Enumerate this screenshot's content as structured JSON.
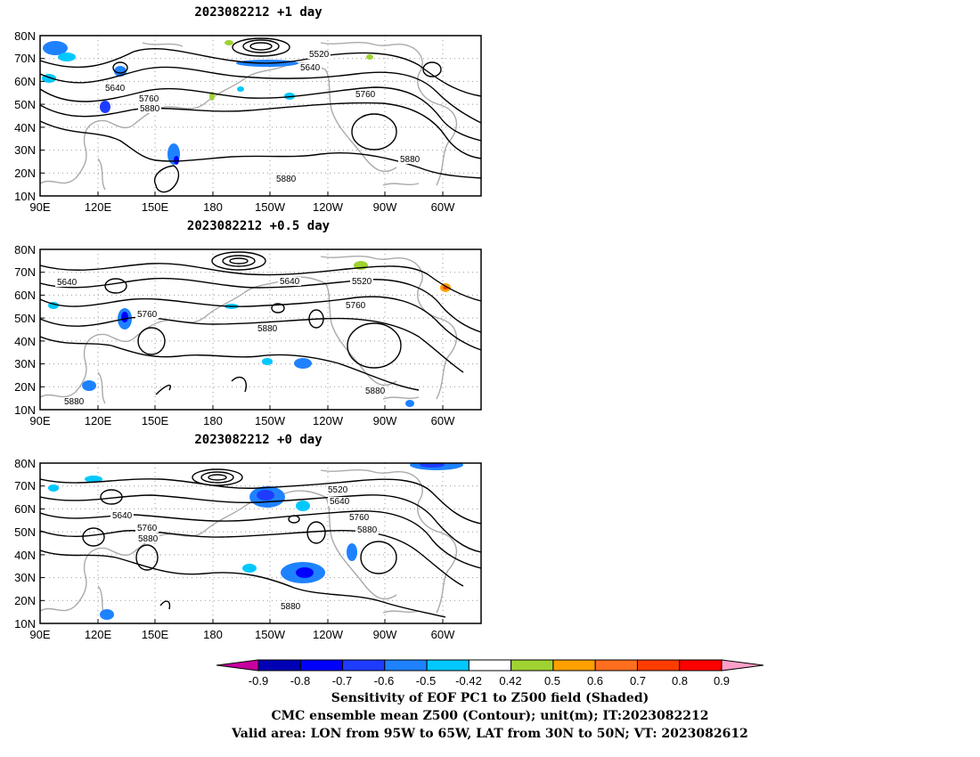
{
  "panels": [
    {
      "title": "2023082212 +1 day",
      "lat_ticks": [
        "80N",
        "70N",
        "60N",
        "50N",
        "40N",
        "30N",
        "20N",
        "10N"
      ],
      "lon_ticks": [
        "90E",
        "120E",
        "150E",
        "180",
        "150W",
        "120W",
        "90W",
        "60W"
      ],
      "contour_labels": [
        "5520",
        "5640",
        "5640",
        "5760",
        "5760",
        "5880",
        "5880",
        "5880"
      ]
    },
    {
      "title": "2023082212 +0.5 day",
      "lat_ticks": [
        "80N",
        "70N",
        "60N",
        "50N",
        "40N",
        "30N",
        "20N",
        "10N"
      ],
      "lon_ticks": [
        "90E",
        "120E",
        "150E",
        "180",
        "150W",
        "120W",
        "90W",
        "60W"
      ],
      "contour_labels": [
        "5640",
        "5640",
        "5520",
        "5760",
        "5760",
        "5880",
        "5880",
        "5880"
      ]
    },
    {
      "title": "2023082212 +0 day",
      "lat_ticks": [
        "80N",
        "70N",
        "60N",
        "50N",
        "40N",
        "30N",
        "20N",
        "10N"
      ],
      "lon_ticks": [
        "90E",
        "120E",
        "150E",
        "180",
        "150W",
        "120W",
        "90W",
        "60W"
      ],
      "contour_labels": [
        "5520",
        "5640",
        "5640",
        "5760",
        "5760",
        "5880",
        "5880",
        "5880"
      ]
    }
  ],
  "colorbar": {
    "labels": [
      "-0.9",
      "-0.8",
      "-0.7",
      "-0.6",
      "-0.5",
      "-0.42",
      "0.42",
      "0.5",
      "0.6",
      "0.7",
      "0.8",
      "0.9"
    ],
    "colors": [
      "#0000b4",
      "#0000ff",
      "#1e3cff",
      "#1e82ff",
      "#00c8ff",
      "#ffffff",
      "#a0d232",
      "#ffa000",
      "#ff6e1e",
      "#ff3c00",
      "#ff0000"
    ],
    "low_extend_color": "#c800a0",
    "high_extend_color": "#ffa0c8"
  },
  "caption": {
    "line1": "Sensitivity of EOF PC1 to Z500 field (Shaded)",
    "line2": "CMC ensemble mean Z500 (Contour); unit(m); IT:2023082212",
    "line3": "Valid area: LON from 95W to 65W, LAT from 30N to 50N; VT: 2023082612"
  }
}
